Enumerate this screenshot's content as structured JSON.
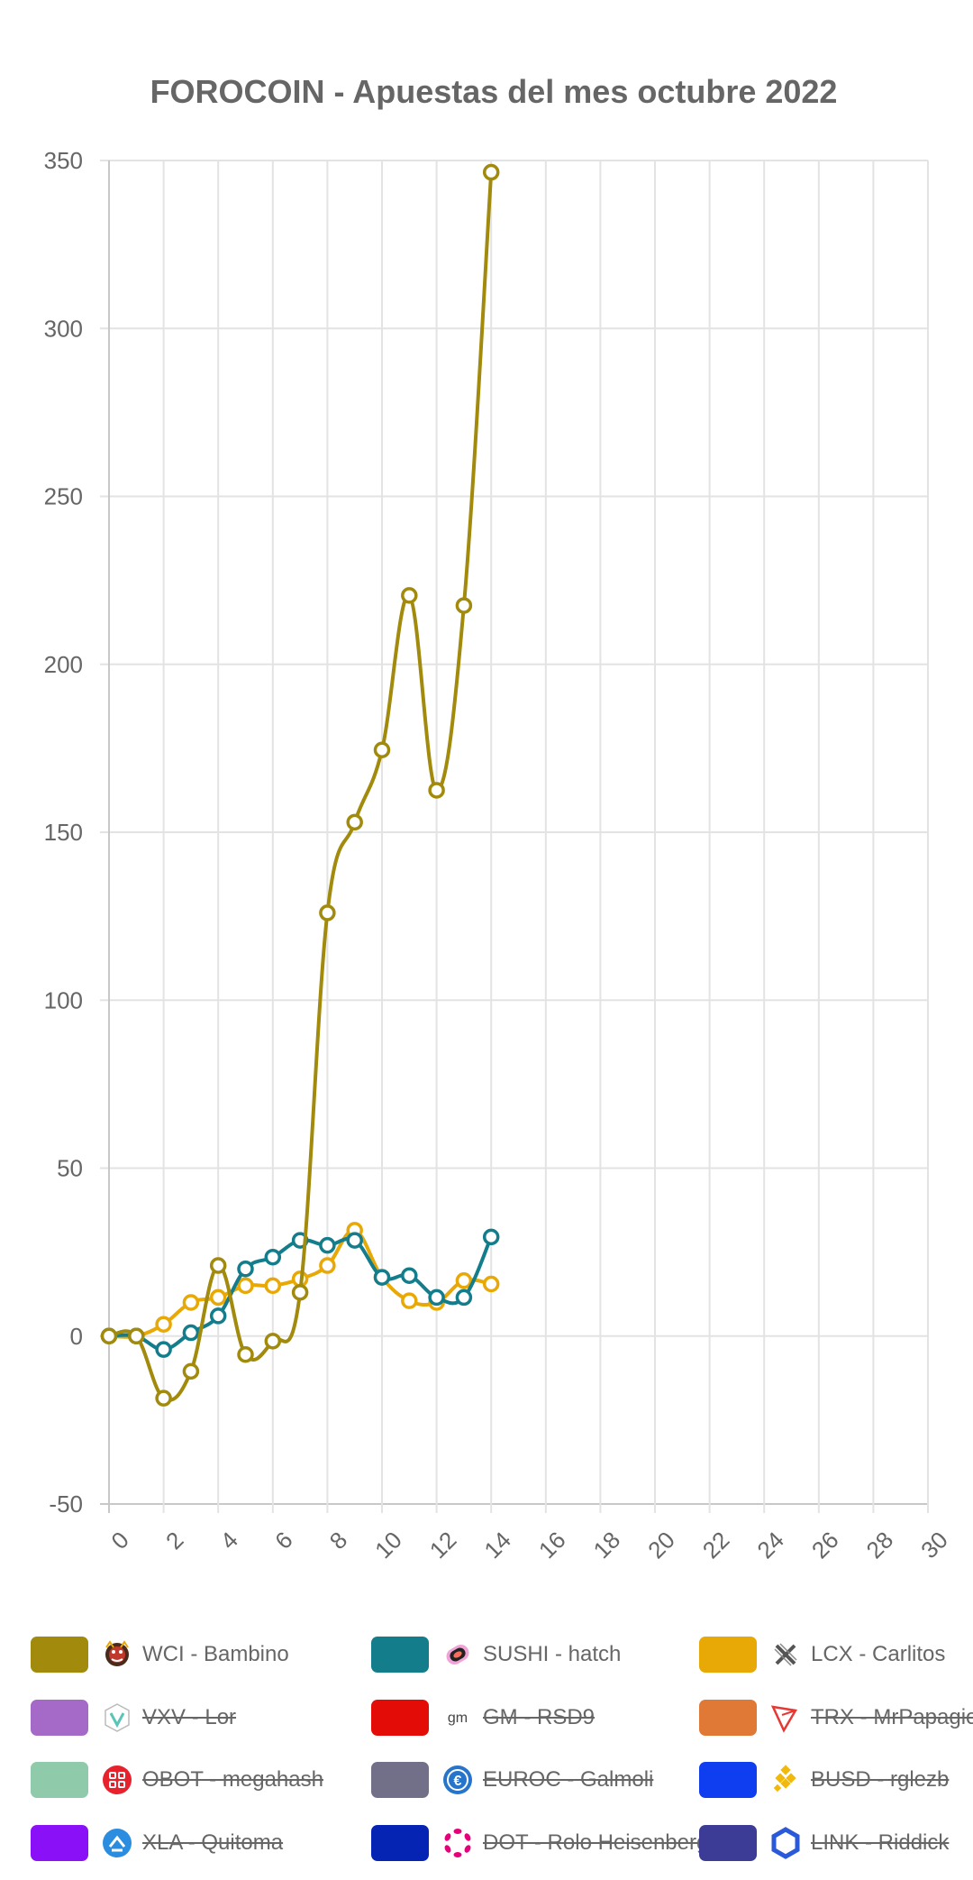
{
  "chart_data": {
    "type": "line",
    "title": "FOROCOIN - Apuestas del mes octubre 2022",
    "xlabel": "",
    "ylabel": "",
    "xlim": [
      0,
      30
    ],
    "x_ticks": [
      0,
      2,
      4,
      6,
      8,
      10,
      12,
      14,
      16,
      18,
      20,
      22,
      24,
      26,
      28,
      30
    ],
    "ylim": [
      -50,
      350
    ],
    "y_ticks": [
      -50,
      0,
      50,
      100,
      150,
      200,
      250,
      300,
      350
    ],
    "grid": true,
    "legend_position": "bottom",
    "series": [
      {
        "name": "WCI - Bambino",
        "color": "#a18a0c",
        "icon": "wci-bambino-icon",
        "hidden": false,
        "x": [
          0,
          1,
          2,
          3,
          4,
          5,
          6,
          7,
          8,
          9,
          10,
          11,
          12,
          13,
          14
        ],
        "values": [
          0,
          0,
          -18.5,
          -10.5,
          21,
          -5.5,
          -1.5,
          13,
          126,
          153,
          174.5,
          220.5,
          162.5,
          217.5,
          346.5
        ]
      },
      {
        "name": "SUSHI - hatch",
        "color": "#137d8c",
        "icon": "sushi-icon",
        "hidden": false,
        "x": [
          0,
          1,
          2,
          3,
          4,
          5,
          6,
          7,
          8,
          9,
          10,
          11,
          12,
          13,
          14
        ],
        "values": [
          0,
          0,
          -4,
          1,
          6,
          20,
          23.5,
          28.5,
          27,
          28.5,
          17.5,
          18,
          11.5,
          11.5,
          29.5
        ]
      },
      {
        "name": "LCX - Carlitos",
        "color": "#e8a806",
        "icon": "lcx-icon",
        "hidden": false,
        "x": [
          0,
          1,
          2,
          3,
          4,
          5,
          6,
          7,
          8,
          9,
          10,
          11,
          12,
          13,
          14
        ],
        "values": [
          0,
          0,
          3.5,
          10,
          11.5,
          15,
          15,
          17,
          21,
          31.5,
          17.5,
          10.5,
          10,
          16.5,
          15.5
        ]
      },
      {
        "name": "VXV - Lor",
        "color": "#a569c8",
        "icon": "vxv-icon",
        "hidden": true,
        "values": []
      },
      {
        "name": "GM - RSD9",
        "color": "#e40c06",
        "icon": "gm-icon",
        "hidden": true,
        "values": []
      },
      {
        "name": "TRX - MrPapagiorgio",
        "color": "#e07836",
        "icon": "trx-icon",
        "hidden": true,
        "values": []
      },
      {
        "name": "OBOT - megahash",
        "color": "#8fcaaa",
        "icon": "obot-icon",
        "hidden": true,
        "values": []
      },
      {
        "name": "EUROC - Galmoli",
        "color": "#727088",
        "icon": "euroc-icon",
        "hidden": true,
        "values": []
      },
      {
        "name": "BUSD - rglezb",
        "color": "#0f3ef0",
        "icon": "busd-icon",
        "hidden": true,
        "values": []
      },
      {
        "name": "XLA - Quitoma",
        "color": "#8a10f8",
        "icon": "xla-icon",
        "hidden": true,
        "values": []
      },
      {
        "name": "DOT - Rolo Heisenberg",
        "color": "#0624b4",
        "icon": "dot-icon",
        "hidden": true,
        "values": []
      },
      {
        "name": "LINK - Riddick",
        "color": "#3c3c96",
        "icon": "link-icon",
        "hidden": true,
        "values": []
      }
    ]
  }
}
